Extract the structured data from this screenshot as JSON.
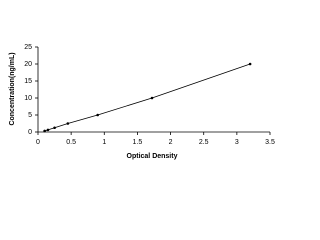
{
  "chart_data": {
    "type": "line",
    "xlabel": "Optical Density",
    "ylabel": "Concentration(ng/mL)",
    "series": [
      {
        "color": "#000000",
        "x": [
          0.1,
          0.15,
          0.25,
          0.45,
          0.9,
          1.72,
          3.2
        ],
        "values": [
          0.31,
          0.625,
          1.25,
          2.5,
          5,
          10,
          20
        ]
      }
    ],
    "xlim": [
      0,
      3.5
    ],
    "xticks": [
      0,
      0.5,
      1,
      1.5,
      2,
      2.5,
      3,
      3.5
    ],
    "ylim": [
      0,
      25
    ],
    "yticks": [
      0,
      5,
      10,
      15,
      20,
      25
    ],
    "grid": false
  }
}
